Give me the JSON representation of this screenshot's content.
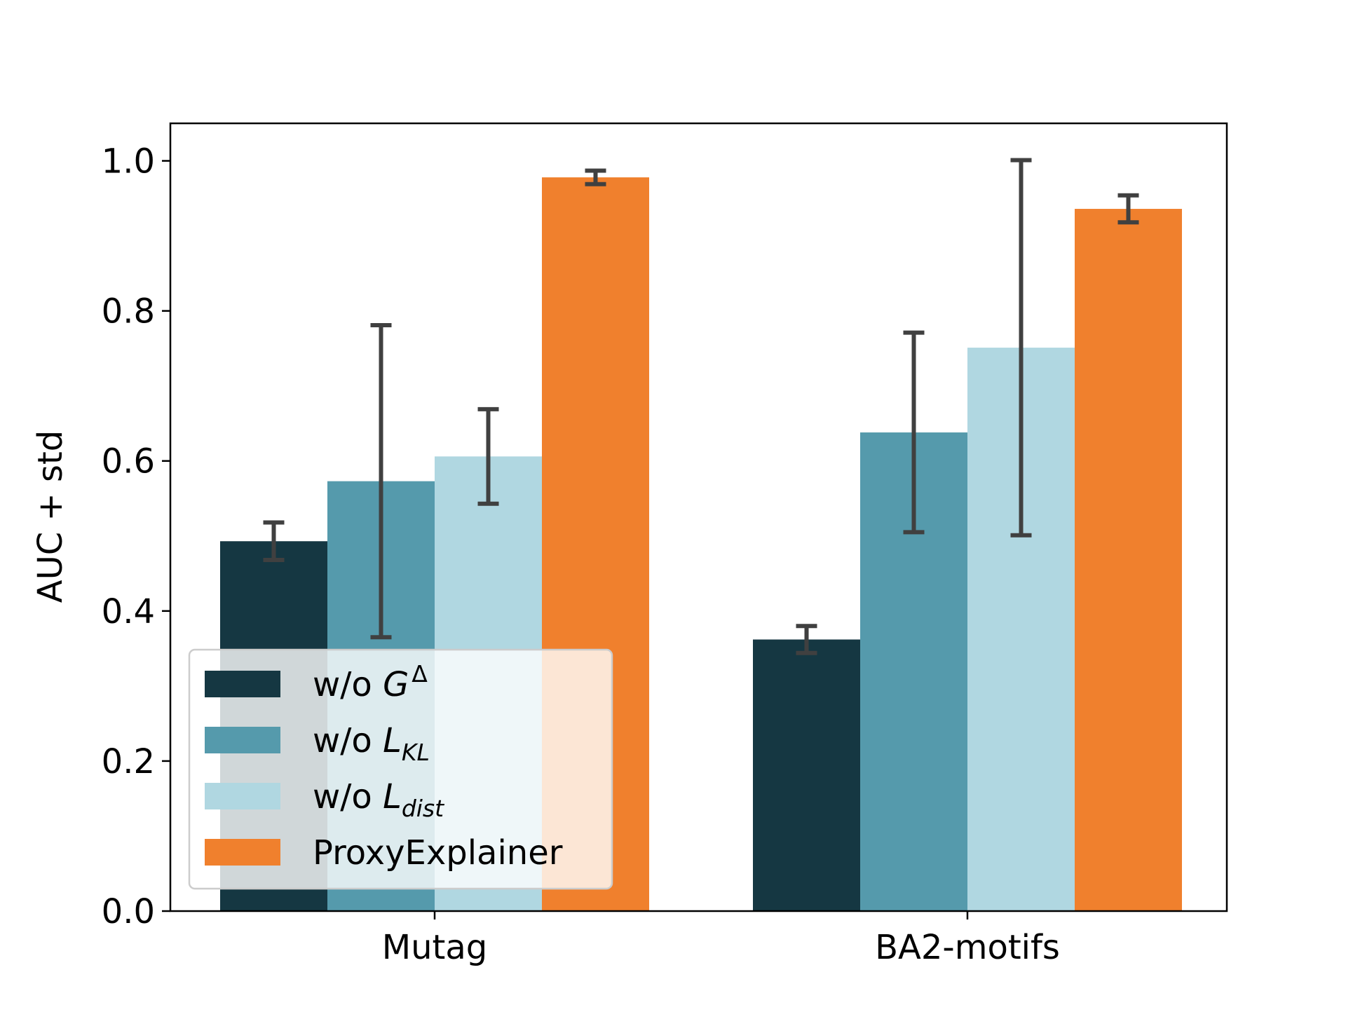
{
  "chart_data": {
    "type": "bar",
    "title": "",
    "xlabel": "",
    "ylabel": "AUC + std",
    "ylim": [
      0.0,
      1.05
    ],
    "yticks": [
      "0.0",
      "0.2",
      "0.4",
      "0.6",
      "0.8",
      "1.0"
    ],
    "categories": [
      "Mutag",
      "BA2-motifs"
    ],
    "series": [
      {
        "name": "w/o G^Δ",
        "color": "#153742",
        "values": [
          0.493,
          0.362
        ],
        "std": [
          0.025,
          0.018
        ]
      },
      {
        "name": "w/o L_KL",
        "color": "#559aac",
        "values": [
          0.573,
          0.638
        ],
        "std": [
          0.208,
          0.133
        ]
      },
      {
        "name": "w/o L_dist",
        "color": "#b0d7e1",
        "values": [
          0.606,
          0.751
        ],
        "std": [
          0.063,
          0.25
        ]
      },
      {
        "name": "ProxyExplainer",
        "color": "#f0802d",
        "values": [
          0.978,
          0.936
        ],
        "std": [
          0.009,
          0.018
        ]
      }
    ],
    "legend": {
      "position": "lower-left",
      "entries": [
        {
          "base": "w/o ",
          "math": "G",
          "sup": "Δ",
          "sub": ""
        },
        {
          "base": "w/o ",
          "math": "L",
          "sup": "",
          "sub": "KL"
        },
        {
          "base": "w/o ",
          "math": "L",
          "sup": "",
          "sub": "dist"
        },
        {
          "base": "ProxyExplainer",
          "math": "",
          "sup": "",
          "sub": ""
        }
      ]
    },
    "errorbar_color": "#404040",
    "grid": false
  }
}
